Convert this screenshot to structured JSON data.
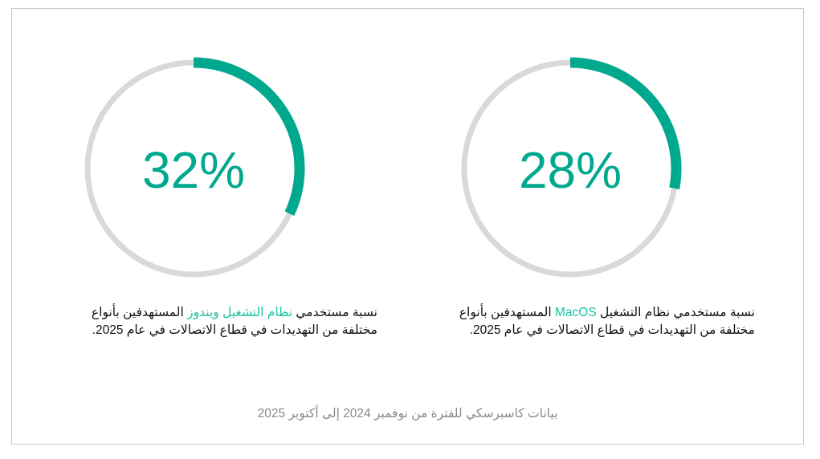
{
  "chart_data": [
    {
      "type": "donut",
      "values": [
        32
      ],
      "value_labels": [
        "32%"
      ],
      "color": "#00a88e",
      "track_color": "#d9d9d9",
      "caption": [
        "نسبة مستخدمي ",
        "نظام التشغيل ويندوز",
        " المستهدفين بأنواع مختلفة من التهديدات في قطاع الاتصالات في عام 2025."
      ],
      "highlight_color": "#1cc3a4"
    },
    {
      "type": "donut",
      "values": [
        28
      ],
      "value_labels": [
        "28%"
      ],
      "color": "#00a88e",
      "track_color": "#d9d9d9",
      "caption": [
        "نسبة مستخدمي نظام التشغيل ",
        "MacOS",
        " المستهدفين بأنواع مختلفة من التهديدات في قطاع الاتصالات في عام 2025."
      ],
      "highlight_color": "#1cc3a4"
    }
  ],
  "footer": "بيانات كاسبرسكي للفترة من نوفمبر 2024 إلى أكتوبر 2025"
}
